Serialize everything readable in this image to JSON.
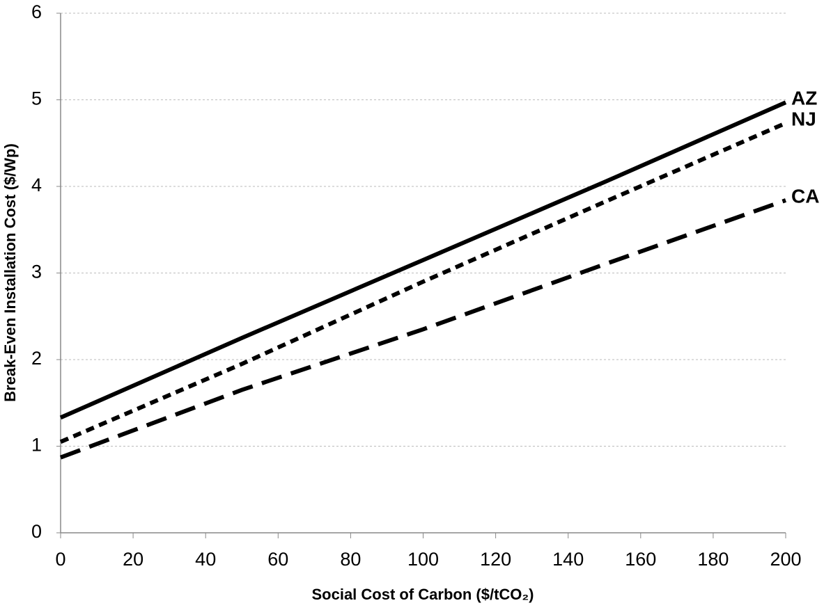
{
  "chart_data": {
    "type": "line",
    "x_label": "Social Cost of Carbon ($/tCO₂)",
    "y_label": "Break-Even Installation Cost ($/Wp)",
    "x": [
      0,
      50,
      100,
      150,
      200
    ],
    "series": [
      {
        "name": "AZ",
        "color": "#000000",
        "dash": "solid",
        "values": [
          1.33,
          2.25,
          3.15,
          4.05,
          4.97
        ]
      },
      {
        "name": "NJ",
        "color": "#000000",
        "dash": "dotted",
        "values": [
          1.05,
          1.95,
          2.9,
          3.82,
          4.73
        ]
      },
      {
        "name": "CA",
        "color": "#000000",
        "dash": "dashed",
        "values": [
          0.87,
          1.65,
          2.35,
          3.1,
          3.84
        ]
      }
    ],
    "xlim": [
      0,
      200
    ],
    "xticks": [
      0,
      20,
      40,
      60,
      80,
      100,
      120,
      140,
      160,
      180,
      200
    ],
    "ylim": [
      0,
      6
    ],
    "yticks": [
      0,
      1,
      2,
      3,
      4,
      5,
      6
    ],
    "grid": true
  }
}
